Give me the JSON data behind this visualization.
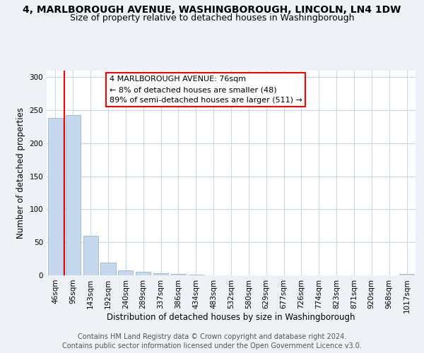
{
  "title": "4, MARLBOROUGH AVENUE, WASHINGBOROUGH, LINCOLN, LN4 1DW",
  "subtitle": "Size of property relative to detached houses in Washingborough",
  "xlabel": "Distribution of detached houses by size in Washingborough",
  "ylabel": "Number of detached properties",
  "bar_labels": [
    "46sqm",
    "95sqm",
    "143sqm",
    "192sqm",
    "240sqm",
    "289sqm",
    "337sqm",
    "386sqm",
    "434sqm",
    "483sqm",
    "532sqm",
    "580sqm",
    "629sqm",
    "677sqm",
    "726sqm",
    "774sqm",
    "823sqm",
    "871sqm",
    "920sqm",
    "968sqm",
    "1017sqm"
  ],
  "bar_values": [
    238,
    243,
    60,
    19,
    7,
    5,
    3,
    2,
    1,
    0,
    0,
    0,
    0,
    0,
    0,
    0,
    0,
    0,
    0,
    0,
    2
  ],
  "bar_color": "#c5d8ed",
  "bar_edge_color": "#a0bcd8",
  "ylim": [
    0,
    310
  ],
  "yticks": [
    0,
    50,
    100,
    150,
    200,
    250,
    300
  ],
  "annotation_title": "4 MARLBOROUGH AVENUE: 76sqm",
  "annotation_line1": "← 8% of detached houses are smaller (48)",
  "annotation_line2": "89% of semi-detached houses are larger (511) →",
  "footer_line1": "Contains HM Land Registry data © Crown copyright and database right 2024.",
  "footer_line2": "Contains public sector information licensed under the Open Government Licence v3.0.",
  "bg_color": "#eef2f7",
  "plot_bg_color": "#ffffff",
  "grid_color": "#c8d8e8",
  "title_fontsize": 10,
  "subtitle_fontsize": 9,
  "axis_label_fontsize": 8.5,
  "tick_fontsize": 7.5,
  "annotation_fontsize": 8,
  "footer_fontsize": 7,
  "n_bars": 21,
  "bar_width": 0.85,
  "red_line_x": 0.5
}
